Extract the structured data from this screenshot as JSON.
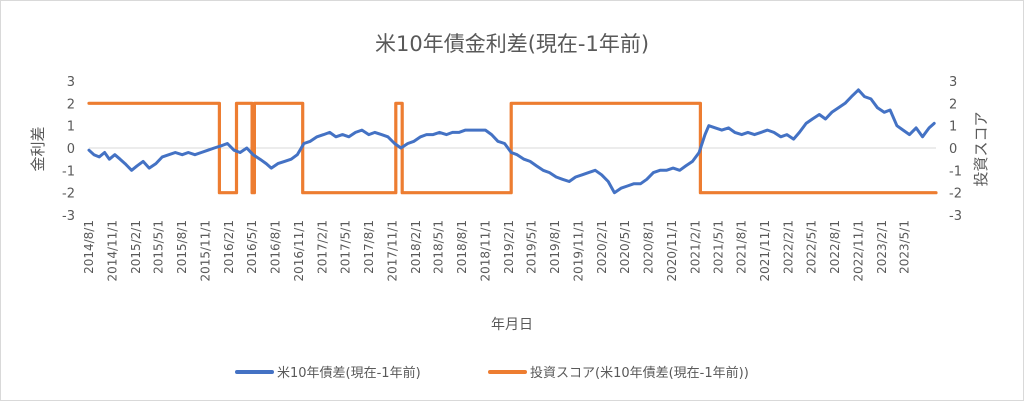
{
  "chart_data": {
    "type": "line",
    "title": "米10年債金利差(現在-1年前)",
    "xlabel": "年月日",
    "ylabel_left": "金利差",
    "ylabel_right": "投資スコア",
    "ylim_left": [
      -3,
      3
    ],
    "ylim_right": [
      -3,
      3
    ],
    "yticks_left": [
      "3",
      "2",
      "1",
      "0",
      "-1",
      "-2",
      "-3"
    ],
    "yticks_right": [
      "3",
      "2",
      "1",
      "0",
      "-1",
      "-2",
      "-3"
    ],
    "grid": false,
    "legend_position": "bottom",
    "x_ticks": [
      "2014/8/1",
      "2014/11/1",
      "2015/2/1",
      "2015/5/1",
      "2015/8/1",
      "2015/11/1",
      "2016/2/1",
      "2016/5/1",
      "2016/8/1",
      "2016/11/1",
      "2017/2/1",
      "2017/5/1",
      "2017/8/1",
      "2017/11/1",
      "2018/2/1",
      "2018/5/1",
      "2018/8/1",
      "2018/11/1",
      "2019/2/1",
      "2019/5/1",
      "2019/8/1",
      "2019/11/1",
      "2020/2/1",
      "2020/5/1",
      "2020/8/1",
      "2020/11/1",
      "2021/2/1",
      "2021/5/1",
      "2021/8/1",
      "2021/11/1",
      "2022/2/1",
      "2022/5/1",
      "2022/8/1",
      "2022/11/1",
      "2023/2/1",
      "2023/5/1"
    ],
    "series": [
      {
        "name": "米10年債差(現在-1年前)",
        "color": "#4472c4",
        "axis": "left",
        "points": [
          [
            "2014/8/1",
            -0.1
          ],
          [
            "2014/8/20",
            -0.3
          ],
          [
            "2014/9/10",
            -0.4
          ],
          [
            "2014/10/1",
            -0.2
          ],
          [
            "2014/10/20",
            -0.5
          ],
          [
            "2014/11/10",
            -0.3
          ],
          [
            "2014/12/1",
            -0.5
          ],
          [
            "2014/12/20",
            -0.7
          ],
          [
            "2015/1/15",
            -1.0
          ],
          [
            "2015/2/5",
            -0.8
          ],
          [
            "2015/3/1",
            -0.6
          ],
          [
            "2015/3/25",
            -0.9
          ],
          [
            "2015/4/20",
            -0.7
          ],
          [
            "2015/5/15",
            -0.4
          ],
          [
            "2015/6/10",
            -0.3
          ],
          [
            "2015/7/5",
            -0.2
          ],
          [
            "2015/8/1",
            -0.3
          ],
          [
            "2015/8/25",
            -0.2
          ],
          [
            "2015/9/20",
            -0.3
          ],
          [
            "2015/10/15",
            -0.2
          ],
          [
            "2015/11/10",
            -0.1
          ],
          [
            "2015/12/5",
            0.0
          ],
          [
            "2016/1/1",
            0.1
          ],
          [
            "2016/1/25",
            0.2
          ],
          [
            "2016/2/20",
            -0.1
          ],
          [
            "2016/3/15",
            -0.2
          ],
          [
            "2016/4/10",
            0.0
          ],
          [
            "2016/5/5",
            -0.3
          ],
          [
            "2016/6/1",
            -0.5
          ],
          [
            "2016/6/25",
            -0.7
          ],
          [
            "2016/7/15",
            -0.9
          ],
          [
            "2016/8/10",
            -0.7
          ],
          [
            "2016/9/5",
            -0.6
          ],
          [
            "2016/10/1",
            -0.5
          ],
          [
            "2016/10/25",
            -0.3
          ],
          [
            "2016/11/20",
            0.2
          ],
          [
            "2016/12/15",
            0.3
          ],
          [
            "2017/1/10",
            0.5
          ],
          [
            "2017/2/5",
            0.6
          ],
          [
            "2017/3/1",
            0.7
          ],
          [
            "2017/3/25",
            0.5
          ],
          [
            "2017/4/20",
            0.6
          ],
          [
            "2017/5/15",
            0.5
          ],
          [
            "2017/6/10",
            0.7
          ],
          [
            "2017/7/5",
            0.8
          ],
          [
            "2017/8/1",
            0.6
          ],
          [
            "2017/8/25",
            0.7
          ],
          [
            "2017/9/20",
            0.6
          ],
          [
            "2017/10/15",
            0.5
          ],
          [
            "2017/11/10",
            0.2
          ],
          [
            "2017/12/5",
            0.0
          ],
          [
            "2018/1/1",
            0.2
          ],
          [
            "2018/1/25",
            0.3
          ],
          [
            "2018/2/20",
            0.5
          ],
          [
            "2018/3/15",
            0.6
          ],
          [
            "2018/4/10",
            0.6
          ],
          [
            "2018/5/5",
            0.7
          ],
          [
            "2018/6/1",
            0.6
          ],
          [
            "2018/6/25",
            0.7
          ],
          [
            "2018/7/20",
            0.7
          ],
          [
            "2018/8/15",
            0.8
          ],
          [
            "2018/9/10",
            0.8
          ],
          [
            "2018/10/5",
            0.8
          ],
          [
            "2018/11/1",
            0.8
          ],
          [
            "2018/11/25",
            0.6
          ],
          [
            "2018/12/20",
            0.3
          ],
          [
            "2019/1/15",
            0.2
          ],
          [
            "2019/2/10",
            -0.2
          ],
          [
            "2019/3/5",
            -0.3
          ],
          [
            "2019/4/1",
            -0.5
          ],
          [
            "2019/4/25",
            -0.6
          ],
          [
            "2019/5/20",
            -0.8
          ],
          [
            "2019/6/15",
            -1.0
          ],
          [
            "2019/7/10",
            -1.1
          ],
          [
            "2019/8/5",
            -1.3
          ],
          [
            "2019/8/30",
            -1.4
          ],
          [
            "2019/9/25",
            -1.5
          ],
          [
            "2019/10/20",
            -1.3
          ],
          [
            "2019/11/15",
            -1.2
          ],
          [
            "2019/12/10",
            -1.1
          ],
          [
            "2020/1/5",
            -1.0
          ],
          [
            "2020/1/30",
            -1.2
          ],
          [
            "2020/2/25",
            -1.5
          ],
          [
            "2020/3/20",
            -2.0
          ],
          [
            "2020/4/15",
            -1.8
          ],
          [
            "2020/5/10",
            -1.7
          ],
          [
            "2020/6/5",
            -1.6
          ],
          [
            "2020/7/1",
            -1.6
          ],
          [
            "2020/7/25",
            -1.4
          ],
          [
            "2020/8/20",
            -1.1
          ],
          [
            "2020/9/15",
            -1.0
          ],
          [
            "2020/10/10",
            -1.0
          ],
          [
            "2020/11/5",
            -0.9
          ],
          [
            "2020/12/1",
            -1.0
          ],
          [
            "2020/12/25",
            -0.8
          ],
          [
            "2021/1/20",
            -0.6
          ],
          [
            "2021/2/15",
            -0.2
          ],
          [
            "2021/3/10",
            0.6
          ],
          [
            "2021/3/25",
            1.0
          ],
          [
            "2021/4/20",
            0.9
          ],
          [
            "2021/5/15",
            0.8
          ],
          [
            "2021/6/10",
            0.9
          ],
          [
            "2021/7/5",
            0.7
          ],
          [
            "2021/8/1",
            0.6
          ],
          [
            "2021/8/25",
            0.7
          ],
          [
            "2021/9/20",
            0.6
          ],
          [
            "2021/10/15",
            0.7
          ],
          [
            "2021/11/10",
            0.8
          ],
          [
            "2021/12/5",
            0.7
          ],
          [
            "2022/1/1",
            0.5
          ],
          [
            "2022/1/25",
            0.6
          ],
          [
            "2022/2/20",
            0.4
          ],
          [
            "2022/3/15",
            0.7
          ],
          [
            "2022/4/10",
            1.1
          ],
          [
            "2022/5/5",
            1.3
          ],
          [
            "2022/6/1",
            1.5
          ],
          [
            "2022/6/25",
            1.3
          ],
          [
            "2022/7/20",
            1.6
          ],
          [
            "2022/8/15",
            1.8
          ],
          [
            "2022/9/10",
            2.0
          ],
          [
            "2022/10/5",
            2.3
          ],
          [
            "2022/11/1",
            2.6
          ],
          [
            "2022/11/25",
            2.3
          ],
          [
            "2022/12/20",
            2.2
          ],
          [
            "2023/1/15",
            1.8
          ],
          [
            "2023/2/10",
            1.6
          ],
          [
            "2023/3/5",
            1.7
          ],
          [
            "2023/4/1",
            1.0
          ],
          [
            "2023/4/25",
            0.8
          ],
          [
            "2023/5/20",
            0.6
          ],
          [
            "2023/6/15",
            0.9
          ],
          [
            "2023/7/10",
            0.5
          ],
          [
            "2023/8/5",
            0.9
          ],
          [
            "2023/8/25",
            1.1
          ]
        ]
      },
      {
        "name": "投資スコア(米10年債差(現在-1年前))",
        "color": "#ed7d31",
        "axis": "right",
        "points": [
          [
            "2014/8/1",
            2
          ],
          [
            "2015/12/25",
            2
          ],
          [
            "2015/12/25",
            -2
          ],
          [
            "2016/3/1",
            -2
          ],
          [
            "2016/3/1",
            2
          ],
          [
            "2016/5/1",
            2
          ],
          [
            "2016/5/1",
            -2
          ],
          [
            "2016/5/10",
            -2
          ],
          [
            "2016/5/10",
            2
          ],
          [
            "2016/11/15",
            2
          ],
          [
            "2016/11/15",
            -2
          ],
          [
            "2017/11/15",
            -2
          ],
          [
            "2017/11/15",
            2
          ],
          [
            "2017/12/10",
            2
          ],
          [
            "2017/12/10",
            -2
          ],
          [
            "2019/2/10",
            -2
          ],
          [
            "2019/2/10",
            2
          ],
          [
            "2021/2/20",
            2
          ],
          [
            "2021/2/20",
            -2
          ],
          [
            "2023/9/1",
            -2
          ]
        ]
      }
    ]
  }
}
